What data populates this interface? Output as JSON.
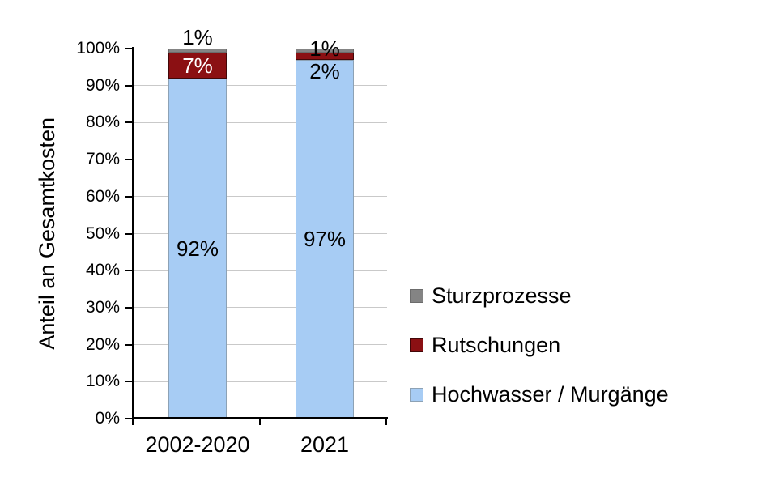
{
  "chart_data": {
    "type": "bar",
    "variant": "stacked-column-100",
    "title": "",
    "xlabel": "",
    "ylabel": "Anteil an Gesamtkosten",
    "categories": [
      "2002-2020",
      "2021"
    ],
    "series": [
      {
        "name": "Hochwasser / Murgänge",
        "values": [
          92,
          97
        ],
        "labels": [
          "92%",
          "97%"
        ],
        "label_positions": [
          "center",
          "center"
        ],
        "label_colors": [
          "#000000",
          "#000000"
        ],
        "color": "#A7CCF4",
        "border_color": "#8DA2B5"
      },
      {
        "name": "Rutschungen",
        "values": [
          7,
          2
        ],
        "labels": [
          "7%",
          "2%"
        ],
        "label_positions": [
          "center",
          "below"
        ],
        "label_colors": [
          "#FFFFFF",
          "#000000"
        ],
        "color": "#8B1013",
        "border_color": "#420708"
      },
      {
        "name": "Sturzprozesse",
        "values": [
          1,
          1
        ],
        "labels": [
          "1%",
          "1%"
        ],
        "label_positions": [
          "above",
          "edge"
        ],
        "label_colors": [
          "#000000",
          "#000000"
        ],
        "color": "#848484",
        "border_color": "#6C6C6C"
      }
    ],
    "ylim": [
      0,
      100
    ],
    "y_ticks": [
      "0%",
      "10%",
      "20%",
      "30%",
      "40%",
      "50%",
      "60%",
      "70%",
      "80%",
      "90%",
      "100%"
    ],
    "grid": true,
    "gridline_color": "#C9C9C9",
    "axis_color": "#000000",
    "legend_position": "right",
    "legend": [
      "Sturzprozesse",
      "Rutschungen",
      "Hochwasser / Murgänge"
    ]
  }
}
